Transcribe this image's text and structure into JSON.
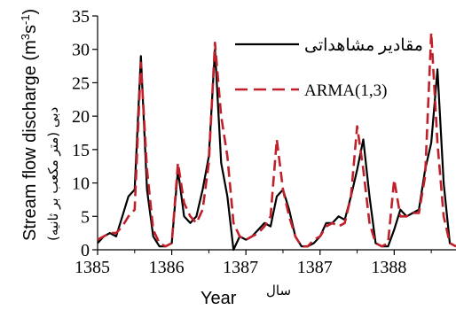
{
  "chart_data": {
    "type": "line",
    "xlabel": "Year",
    "xlabel_secondary": "سال",
    "ylabel_parts": [
      "Stream flow discharge (m",
      "3",
      "s",
      "-1",
      ")"
    ],
    "ylabel_secondary": "(دبی (متر مکعب بر ثانیه",
    "ylim": [
      0,
      35
    ],
    "yticks": [
      0,
      5,
      10,
      15,
      20,
      25,
      30,
      35
    ],
    "xticks": [
      {
        "label": "1385",
        "index": 0
      },
      {
        "label": "1386",
        "index": 12
      },
      {
        "label": "1387",
        "index": 24
      },
      {
        "label": "1387",
        "index": 36
      },
      {
        "label": "1388",
        "index": 48
      }
    ],
    "grid": false,
    "legend_position": "top-right",
    "series": [
      {
        "name": "مقادیر مشاهداتی",
        "color": "#000000",
        "dash": "solid",
        "values": [
          1,
          2,
          2.5,
          2,
          5,
          8,
          9,
          29,
          9,
          2,
          0.5,
          0.5,
          1,
          12,
          5,
          4,
          5,
          9,
          14,
          30,
          13,
          8,
          0,
          2,
          1.5,
          2,
          3,
          4,
          3.5,
          8,
          9,
          6,
          2,
          0.5,
          0.5,
          1,
          2,
          4,
          4,
          5,
          4.5,
          8,
          12,
          16.5,
          8,
          1,
          0.5,
          0.5,
          3,
          6,
          5,
          5.5,
          6,
          12,
          16,
          27,
          10,
          1,
          0.5
        ]
      },
      {
        "name": "ARMA(1,3)",
        "color": "#c0202a",
        "dash": "dashed",
        "values": [
          1.5,
          2,
          2.5,
          2.5,
          3.5,
          5,
          6,
          28,
          12,
          3,
          1,
          0.5,
          1,
          13,
          7,
          5,
          4,
          6,
          13,
          31,
          20,
          14,
          4,
          2,
          1.5,
          2,
          2.5,
          3.5,
          5,
          16.5,
          9,
          5,
          2,
          0.5,
          0.5,
          1.5,
          2,
          3.5,
          4,
          3.5,
          4,
          8,
          18.5,
          12,
          4,
          1,
          0.5,
          1,
          10.5,
          5,
          5,
          5.5,
          5.5,
          11,
          32.5,
          16,
          5,
          1,
          0.5
        ]
      }
    ]
  }
}
